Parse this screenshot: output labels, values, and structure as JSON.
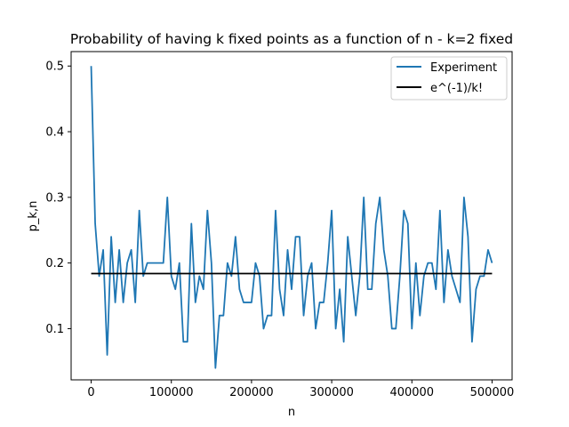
{
  "chart_data": {
    "type": "line",
    "title": "Probability of having k fixed points as a function of n - k=2 fixed",
    "xlabel": "n",
    "ylabel": "p_k,n",
    "xlim": [
      -25000,
      525000
    ],
    "ylim": [
      0.022,
      0.522
    ],
    "xticks": [
      0,
      100000,
      200000,
      300000,
      400000,
      500000
    ],
    "yticks": [
      0.1,
      0.2,
      0.3,
      0.4,
      0.5
    ],
    "legend_position": "top-right",
    "grid": false,
    "series": [
      {
        "name": "Experiment",
        "color": "#1f77b4",
        "x": [
          0,
          5000,
          10000,
          15000,
          20000,
          25000,
          30000,
          35000,
          40000,
          45000,
          50000,
          55000,
          60000,
          65000,
          70000,
          75000,
          80000,
          85000,
          90000,
          95000,
          100000,
          105000,
          110000,
          115000,
          120000,
          125000,
          130000,
          135000,
          140000,
          145000,
          150000,
          155000,
          160000,
          165000,
          170000,
          175000,
          180000,
          185000,
          190000,
          195000,
          200000,
          205000,
          210000,
          215000,
          220000,
          225000,
          230000,
          235000,
          240000,
          245000,
          250000,
          255000,
          260000,
          265000,
          270000,
          275000,
          280000,
          285000,
          290000,
          295000,
          300000,
          305000,
          310000,
          315000,
          320000,
          325000,
          330000,
          335000,
          340000,
          345000,
          350000,
          355000,
          360000,
          365000,
          370000,
          375000,
          380000,
          385000,
          390000,
          395000,
          400000,
          405000,
          410000,
          415000,
          420000,
          425000,
          430000,
          435000,
          440000,
          445000,
          450000,
          455000,
          460000,
          465000,
          470000,
          475000,
          480000,
          485000,
          490000,
          495000,
          500000
        ],
        "values": [
          0.5,
          0.26,
          0.18,
          0.22,
          0.06,
          0.24,
          0.14,
          0.22,
          0.14,
          0.2,
          0.22,
          0.14,
          0.28,
          0.18,
          0.2,
          0.2,
          0.2,
          0.2,
          0.2,
          0.3,
          0.18,
          0.16,
          0.2,
          0.08,
          0.08,
          0.26,
          0.14,
          0.18,
          0.16,
          0.28,
          0.2,
          0.04,
          0.12,
          0.12,
          0.2,
          0.18,
          0.24,
          0.16,
          0.14,
          0.14,
          0.14,
          0.2,
          0.18,
          0.1,
          0.12,
          0.12,
          0.28,
          0.16,
          0.12,
          0.22,
          0.16,
          0.24,
          0.24,
          0.12,
          0.18,
          0.2,
          0.1,
          0.14,
          0.14,
          0.2,
          0.28,
          0.1,
          0.16,
          0.08,
          0.24,
          0.18,
          0.12,
          0.18,
          0.3,
          0.16,
          0.16,
          0.26,
          0.3,
          0.22,
          0.18,
          0.1,
          0.1,
          0.18,
          0.28,
          0.26,
          0.1,
          0.2,
          0.12,
          0.18,
          0.2,
          0.2,
          0.16,
          0.28,
          0.14,
          0.22,
          0.18,
          0.16,
          0.14,
          0.3,
          0.24,
          0.08,
          0.16,
          0.18,
          0.18,
          0.22,
          0.2
        ]
      },
      {
        "name": "e^(-1)/k!",
        "color": "#000000",
        "x": [
          0,
          500000
        ],
        "values": [
          0.1839,
          0.1839
        ]
      }
    ]
  }
}
